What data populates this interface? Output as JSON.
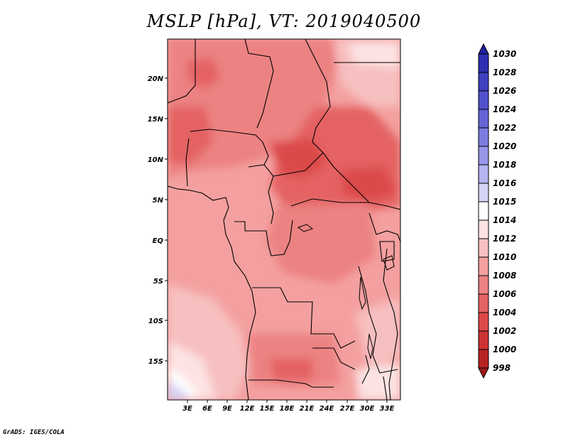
{
  "title": "MSLP [hPa], VT: 2019040500",
  "credit": "GrADS: IGES/COLA",
  "map": {
    "lat_ticks": [
      "20N",
      "15N",
      "10N",
      "5N",
      "EQ",
      "5S",
      "10S",
      "15S"
    ],
    "lon_ticks": [
      "3E",
      "6E",
      "9E",
      "12E",
      "15E",
      "18E",
      "21E",
      "24E",
      "27E",
      "30E",
      "33E"
    ]
  },
  "colorbar": {
    "labels": [
      "1030",
      "1028",
      "1026",
      "1024",
      "1022",
      "1020",
      "1018",
      "1016",
      "1015",
      "1014",
      "1012",
      "1010",
      "1008",
      "1006",
      "1004",
      "1002",
      "1000",
      "998"
    ],
    "colors": [
      "#1f1fa0",
      "#2e2eb2",
      "#3f3fc0",
      "#5151cc",
      "#6464d6",
      "#7c7ce0",
      "#9696e8",
      "#b4b4f0",
      "#d4d4f8",
      "#ffffff",
      "#fde3e3",
      "#f7c0c0",
      "#f4a0a0",
      "#ec8282",
      "#e46262",
      "#dc4848",
      "#cc3232",
      "#b82222",
      "#a01818"
    ]
  }
}
